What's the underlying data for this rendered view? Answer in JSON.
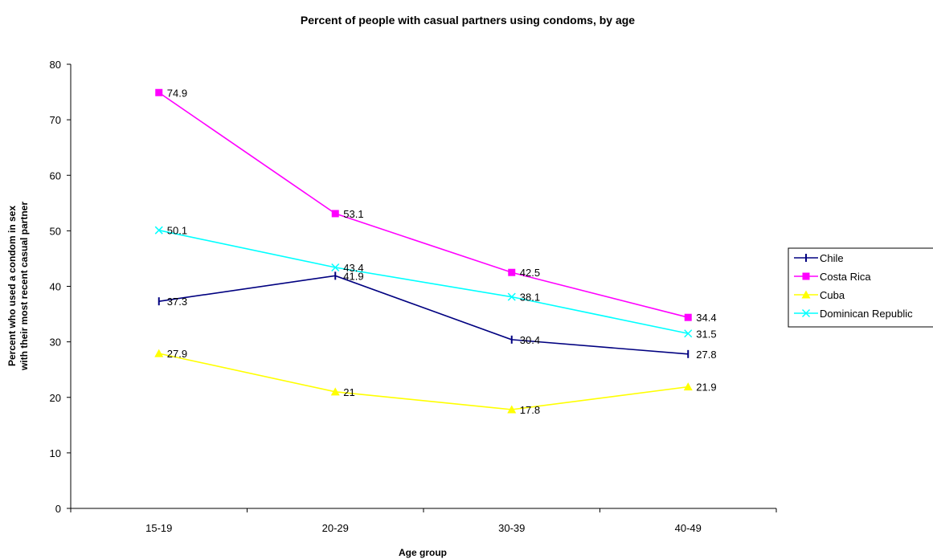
{
  "chart_data": {
    "type": "line",
    "title": "Percent of people with casual partners using condoms, by age",
    "xlabel": "Age group",
    "ylabel_lines": [
      "Percent who used a condom in sex",
      "with their most recent casual partner"
    ],
    "categories": [
      "15-19",
      "20-29",
      "30-39",
      "40-49"
    ],
    "ylim": [
      0,
      80
    ],
    "yticks": [
      0,
      10,
      20,
      30,
      40,
      50,
      60,
      70,
      80
    ],
    "grid": false,
    "legend_position": "right",
    "series": [
      {
        "name": "Chile",
        "values": [
          37.3,
          41.9,
          30.4,
          27.8
        ],
        "labels": [
          "37.3",
          "41.9",
          "30.4",
          "27.8"
        ],
        "color": "#000080",
        "marker": "dash"
      },
      {
        "name": "Costa Rica",
        "values": [
          74.9,
          53.1,
          42.5,
          34.4
        ],
        "labels": [
          "74.9",
          "53.1",
          "42.5",
          "34.4"
        ],
        "color": "#FF00FF",
        "marker": "square"
      },
      {
        "name": "Cuba",
        "values": [
          27.9,
          21,
          17.8,
          21.9
        ],
        "labels": [
          "27.9",
          "21",
          "17.8",
          "21.9"
        ],
        "color": "#FFFF00",
        "marker": "triangle"
      },
      {
        "name": "Dominican Republic",
        "values": [
          50.1,
          43.4,
          38.1,
          31.5
        ],
        "labels": [
          "50.1",
          "43.4",
          "38.1",
          "31.5"
        ],
        "color": "#00FFFF",
        "marker": "x"
      }
    ]
  }
}
